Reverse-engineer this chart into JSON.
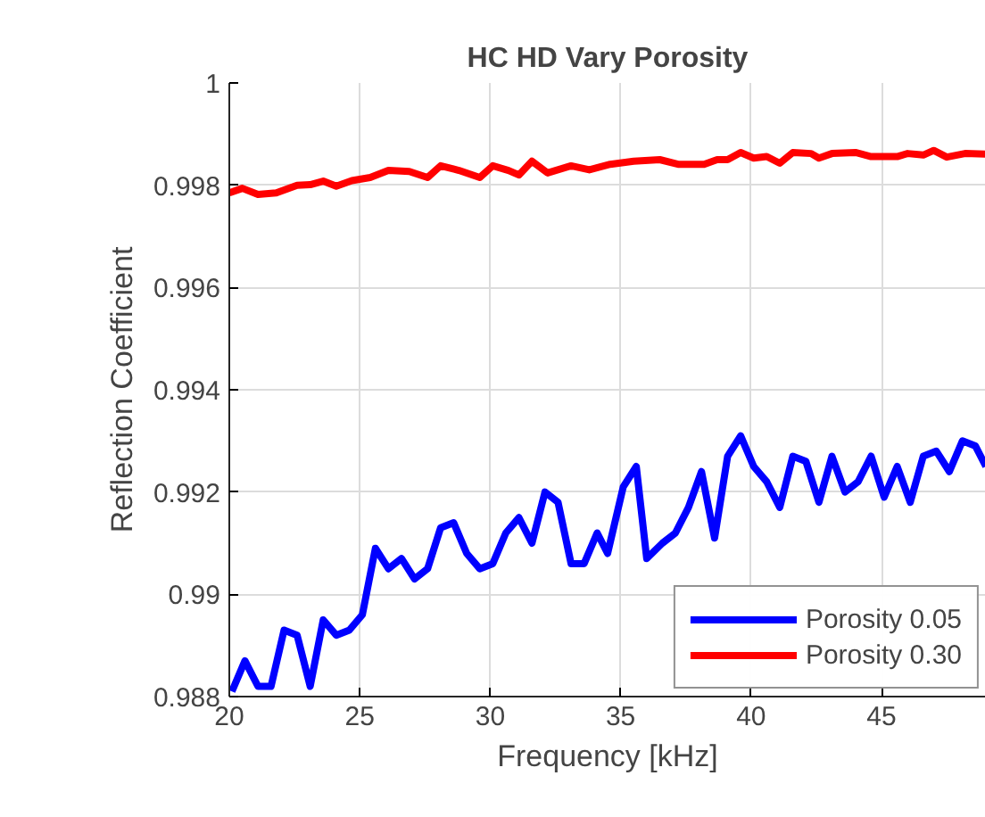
{
  "chart_data": {
    "type": "line",
    "title": "HC HD Vary Porosity",
    "xlabel": "Frequency [kHz]",
    "ylabel": "Reflection Coefficient",
    "xlim": [
      20,
      49
    ],
    "ylim": [
      0.988,
      1
    ],
    "xticks": [
      20,
      25,
      30,
      35,
      40,
      45
    ],
    "yticks": [
      0.988,
      0.99,
      0.992,
      0.994,
      0.996,
      0.998,
      1
    ],
    "grid": true,
    "legend": "bottom right",
    "line_style": "solid",
    "marker": "none",
    "series": [
      {
        "name": "Porosity 0.05",
        "color": "#0000ff",
        "x": [
          20.1,
          20.6,
          21.1,
          21.6,
          22.1,
          22.6,
          23.1,
          23.6,
          24.1,
          24.6,
          25.1,
          25.6,
          26.1,
          26.6,
          27.1,
          27.6,
          28.1,
          28.6,
          29.1,
          29.6,
          30.1,
          30.6,
          31.1,
          31.6,
          32.1,
          32.6,
          33.1,
          33.6,
          34.1,
          34.5,
          35.1,
          35.6,
          36.0,
          36.6,
          37.1,
          37.6,
          38.1,
          38.6,
          39.1,
          39.6,
          40.1,
          40.6,
          41.1,
          41.6,
          42.1,
          42.6,
          43.1,
          43.6,
          44.1,
          44.6,
          45.1,
          45.6,
          46.1,
          46.6,
          47.1,
          47.6,
          48.1,
          48.6,
          49.0
        ],
        "values": [
          0.9881,
          0.9887,
          0.9882,
          0.9882,
          0.9893,
          0.9892,
          0.9882,
          0.9895,
          0.9892,
          0.9893,
          0.9896,
          0.9909,
          0.9905,
          0.9907,
          0.9903,
          0.9905,
          0.9913,
          0.9914,
          0.9908,
          0.9905,
          0.9906,
          0.9912,
          0.9915,
          0.991,
          0.992,
          0.9918,
          0.9906,
          0.9906,
          0.9912,
          0.9908,
          0.9921,
          0.9925,
          0.9907,
          0.991,
          0.9912,
          0.9917,
          0.9924,
          0.9911,
          0.9927,
          0.9931,
          0.9925,
          0.9922,
          0.9917,
          0.9927,
          0.9926,
          0.9918,
          0.9927,
          0.992,
          0.9922,
          0.9927,
          0.9919,
          0.9925,
          0.9918,
          0.9927,
          0.9928,
          0.9924,
          0.993,
          0.9929,
          0.9925
        ]
      },
      {
        "name": "Porosity 0.30",
        "color": "#ff0000",
        "x": [
          20.0,
          20.5,
          21.1,
          21.8,
          22.6,
          23.1,
          23.6,
          24.1,
          24.7,
          25.4,
          26.1,
          26.9,
          27.6,
          28.1,
          28.8,
          29.6,
          30.1,
          30.7,
          31.1,
          31.6,
          32.2,
          33.1,
          33.8,
          34.6,
          35.5,
          36.5,
          37.2,
          38.2,
          38.7,
          39.1,
          39.6,
          40.1,
          40.6,
          41.1,
          41.6,
          42.3,
          42.6,
          43.1,
          44.0,
          44.6,
          45.6,
          46.0,
          46.6,
          47.0,
          47.5,
          48.2,
          49.0
        ],
        "values": [
          0.99785,
          0.99794,
          0.99782,
          0.99785,
          0.998,
          0.99801,
          0.99808,
          0.99798,
          0.99809,
          0.99815,
          0.99829,
          0.99827,
          0.99815,
          0.99838,
          0.99829,
          0.99815,
          0.99838,
          0.99829,
          0.9982,
          0.99847,
          0.99824,
          0.99838,
          0.9983,
          0.99841,
          0.99847,
          0.9985,
          0.99841,
          0.99841,
          0.9985,
          0.9985,
          0.99864,
          0.99853,
          0.99856,
          0.99843,
          0.99864,
          0.99862,
          0.99853,
          0.99862,
          0.99864,
          0.99856,
          0.99856,
          0.99862,
          0.99859,
          0.99868,
          0.99855,
          0.99862,
          0.99861
        ]
      }
    ]
  }
}
